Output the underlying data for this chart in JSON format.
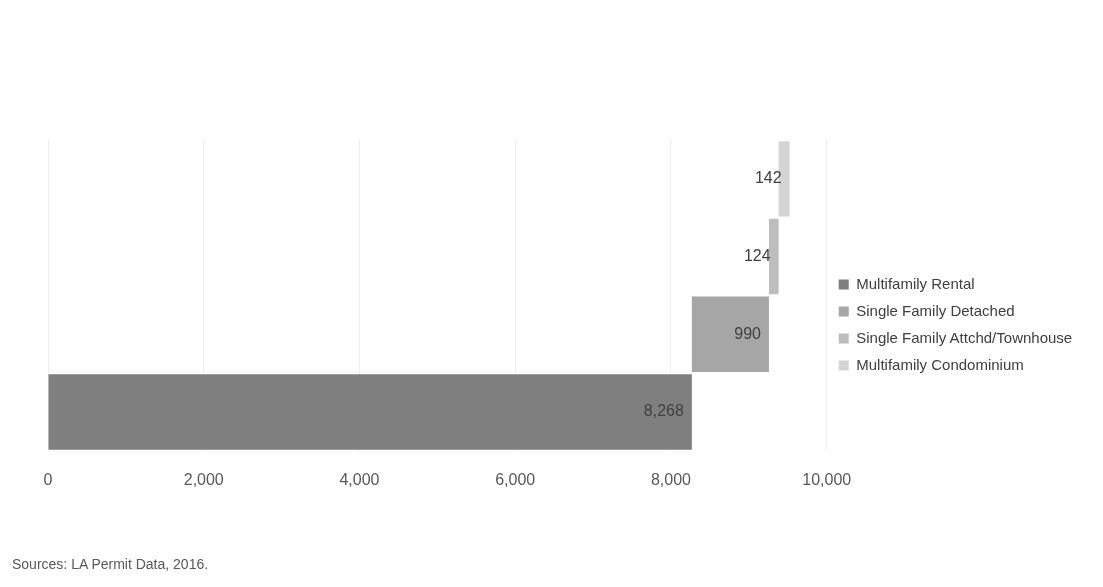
{
  "chart_data": {
    "type": "bar",
    "orientation": "horizontal",
    "stacked": true,
    "categories": [
      null,
      null,
      null,
      null
    ],
    "series": [
      {
        "name": "Multifamily Rental",
        "color": "#7f7f7f",
        "values": [
          null,
          null,
          null,
          8268
        ],
        "base": [
          null,
          null,
          null,
          0
        ],
        "value_labels": [
          null,
          null,
          null,
          "8,268"
        ]
      },
      {
        "name": "Single Family Detached",
        "color": "#a6a6a6",
        "values": [
          null,
          null,
          990,
          null
        ],
        "base": [
          null,
          null,
          8268,
          null
        ],
        "value_labels": [
          null,
          null,
          "990",
          null
        ]
      },
      {
        "name": "Single Family Attchd/Townhouse",
        "color": "#bdbdbd",
        "values": [
          null,
          124,
          null,
          null
        ],
        "base": [
          null,
          9258,
          null,
          null
        ],
        "value_labels": [
          null,
          "124",
          null,
          null
        ]
      },
      {
        "name": "Multifamily Condominium",
        "color": "#d4d4d4",
        "values": [
          142,
          null,
          null,
          null
        ],
        "base": [
          9382,
          null,
          null,
          null
        ],
        "value_labels": [
          "142",
          null,
          null,
          null
        ]
      }
    ],
    "xlim": [
      0,
      10000
    ],
    "xticks": [
      {
        "value": 0,
        "label": "0"
      },
      {
        "value": 2000,
        "label": "2,000"
      },
      {
        "value": 4000,
        "label": "4,000"
      },
      {
        "value": 6000,
        "label": "6,000"
      },
      {
        "value": 8000,
        "label": "8,000"
      },
      {
        "value": 10000,
        "label": "10,000"
      }
    ],
    "grid": "x",
    "legend": "right",
    "tick_labels": "x",
    "annotations": [
      "Sources: LA Permit Data, 2016."
    ]
  }
}
